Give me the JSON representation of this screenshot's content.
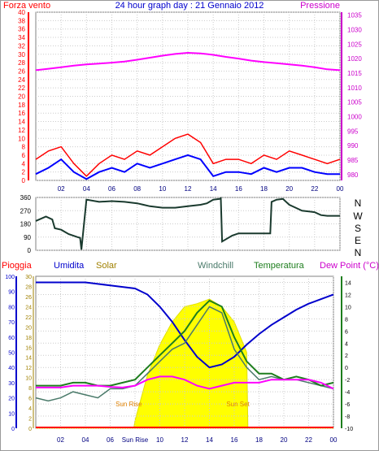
{
  "chart_data": [
    {
      "type": "line",
      "panel": "wind-pressure",
      "title": "24 hour graph day : 21 Gennaio 2012",
      "left_label": "Forza vento",
      "right_label": "Pressione",
      "x_ticks": [
        "02",
        "04",
        "06",
        "08",
        "10",
        "12",
        "14",
        "16",
        "18",
        "20",
        "22",
        "00"
      ],
      "left_ticks": [
        "0",
        "2",
        "4",
        "6",
        "8",
        "10",
        "12",
        "14",
        "16",
        "18",
        "20",
        "22",
        "24",
        "26",
        "28",
        "30",
        "32",
        "34",
        "36",
        "38",
        "40"
      ],
      "right_ticks": [
        "980",
        "985",
        "990",
        "995",
        "1000",
        "1005",
        "1010",
        "1015",
        "1020",
        "1025",
        "1030",
        "1035"
      ],
      "ylim_left": [
        0,
        40
      ],
      "ylim_right": [
        978,
        1036
      ],
      "colors": {
        "gust": "#ff0000",
        "average": "#0000ff",
        "pressure": "#ff00ff"
      },
      "series": [
        {
          "key": "pressure",
          "axis": "right",
          "x": [
            0,
            1,
            2,
            3,
            4,
            5,
            6,
            7,
            8,
            9,
            10,
            11,
            12,
            13,
            14,
            15,
            16,
            17,
            18,
            19,
            20,
            21,
            22,
            23,
            24
          ],
          "y": [
            1016,
            1016.5,
            1017,
            1017.6,
            1018,
            1018.3,
            1018.6,
            1019,
            1019.6,
            1020.3,
            1021,
            1021.6,
            1022,
            1021.8,
            1021.3,
            1020.6,
            1020,
            1019.3,
            1018.8,
            1018.4,
            1018,
            1017.6,
            1017,
            1016.3,
            1016
          ]
        },
        {
          "key": "gust",
          "axis": "left",
          "x": [
            0,
            1,
            2,
            3,
            4,
            5,
            6,
            7,
            8,
            9,
            10,
            11,
            12,
            13,
            14,
            15,
            16,
            17,
            18,
            19,
            20,
            21,
            22,
            23,
            24
          ],
          "y": [
            5,
            7,
            8,
            4,
            1,
            4,
            6,
            5,
            7,
            6,
            8,
            10,
            11,
            9,
            4,
            5,
            5,
            4,
            6,
            5,
            7,
            6,
            5,
            4,
            5
          ]
        },
        {
          "key": "average",
          "axis": "left",
          "x": [
            0,
            1,
            2,
            3,
            4,
            5,
            6,
            7,
            8,
            9,
            10,
            11,
            12,
            13,
            14,
            15,
            16,
            17,
            18,
            19,
            20,
            21,
            22,
            23,
            24
          ],
          "y": [
            1.5,
            3,
            5,
            2,
            0.3,
            2,
            3,
            2,
            4,
            3,
            4,
            5,
            6,
            5,
            1,
            2,
            2,
            1.5,
            3,
            2,
            3,
            3,
            2,
            1.5,
            1.5
          ]
        }
      ]
    },
    {
      "type": "line",
      "panel": "wind-direction",
      "right_ticks": [
        "N",
        "W",
        "S",
        "E",
        "N"
      ],
      "left_ticks": [
        "0",
        "90",
        "180",
        "270",
        "360"
      ],
      "ylim": [
        0,
        360
      ],
      "colors": {
        "direction": "#1a3a2e"
      },
      "series": [
        {
          "key": "direction",
          "x": [
            0,
            0.8,
            1.3,
            1.5,
            2.0,
            2.6,
            3.3,
            3.5,
            3.6,
            4.0,
            5.0,
            6.0,
            7.0,
            8.0,
            8.5,
            9.0,
            10.0,
            11.0,
            12.0,
            13.0,
            13.5,
            14.0,
            14.5,
            14.6,
            14.7,
            15.5,
            16.0,
            17.0,
            18.0,
            18.5,
            18.6,
            19.0,
            19.5,
            20.0,
            20.5,
            21.0,
            22.0,
            22.5,
            23.0,
            24.0
          ],
          "y": [
            200,
            230,
            210,
            150,
            140,
            110,
            90,
            85,
            5,
            345,
            330,
            335,
            330,
            320,
            310,
            300,
            290,
            290,
            300,
            310,
            320,
            345,
            350,
            355,
            60,
            100,
            115,
            115,
            115,
            115,
            330,
            345,
            350,
            310,
            290,
            270,
            260,
            240,
            235,
            235
          ]
        }
      ]
    },
    {
      "type": "line",
      "panel": "temperature-humidity",
      "labels": {
        "rain": "Pioggia",
        "humidity": "Umidita",
        "solar": "Solar",
        "windchill": "Windchill",
        "temperature": "Temperatura",
        "dew_point": "Dew Point (°C)"
      },
      "annotations": [
        "Sun Rise",
        "Sun Set"
      ],
      "x_ticks": [
        "02",
        "04",
        "06",
        "Sun Rise",
        "10",
        "12",
        "14",
        "16",
        "18",
        "20",
        "22",
        "00"
      ],
      "humidity_ticks": [
        "0",
        "10",
        "20",
        "30",
        "40",
        "50",
        "60",
        "70",
        "80",
        "90",
        "100"
      ],
      "rain_ticks": [
        "0",
        "2",
        "4",
        "6",
        "8",
        "10",
        "12",
        "14",
        "16",
        "18",
        "20",
        "22",
        "24",
        "26",
        "28",
        "30"
      ],
      "temperature_ticks": [
        "-10",
        "-8",
        "-6",
        "-4",
        "-2",
        "0",
        "2",
        "4",
        "6",
        "8",
        "10",
        "12",
        "14"
      ],
      "ylim_temperature": [
        -10,
        15
      ],
      "ylim_humidity": [
        0,
        100
      ],
      "colors": {
        "rain": "#ff0000",
        "humidity": "#0000cc",
        "solar": "#ffff00",
        "windchill": "#4a7a6a",
        "temperature": "#1e7e1e",
        "dew_point": "#ff00ff"
      },
      "series": [
        {
          "key": "humidity",
          "x": [
            0,
            1,
            2,
            3,
            4,
            5,
            6,
            7,
            8,
            9,
            10,
            11,
            12,
            13,
            14,
            15,
            16,
            17,
            18,
            19,
            20,
            21,
            22,
            23,
            24
          ],
          "y": [
            96,
            96,
            96,
            96,
            96,
            95,
            94,
            93,
            92,
            88,
            80,
            70,
            58,
            47,
            40,
            42,
            47,
            55,
            62,
            68,
            73,
            78,
            82,
            85,
            88
          ]
        },
        {
          "key": "temperature",
          "x": [
            0,
            1,
            2,
            3,
            4,
            5,
            6,
            7,
            8,
            9,
            10,
            11,
            12,
            13,
            14,
            15,
            16,
            17,
            18,
            19,
            20,
            21,
            22,
            23,
            24
          ],
          "y": [
            -3,
            -3,
            -3,
            -2.5,
            -2.5,
            -3,
            -3,
            -2.5,
            -2,
            0,
            2,
            4,
            6,
            9,
            11,
            10,
            5,
            1,
            -1,
            -1,
            -2,
            -1.5,
            -2,
            -3,
            -2.5
          ]
        },
        {
          "key": "windchill",
          "x": [
            0,
            1,
            2,
            3,
            4,
            5,
            6,
            7,
            8,
            9,
            10,
            11,
            12,
            13,
            14,
            15,
            16,
            17,
            18,
            19,
            20,
            21,
            22,
            23,
            24
          ],
          "y": [
            -5,
            -5.5,
            -5,
            -4,
            -4.5,
            -5,
            -3.5,
            -3.5,
            -3,
            -1,
            1,
            3,
            4,
            7,
            10,
            9,
            3,
            0,
            -2,
            -1.5,
            -2,
            -2,
            -2.5,
            -3,
            -3.5
          ]
        },
        {
          "key": "dew_point",
          "x": [
            0,
            1,
            2,
            3,
            4,
            5,
            6,
            7,
            8,
            9,
            10,
            11,
            12,
            13,
            14,
            15,
            16,
            17,
            18,
            19,
            20,
            21,
            22,
            23,
            24
          ],
          "y": [
            -3.3,
            -3.3,
            -3.3,
            -3,
            -3,
            -3,
            -3.2,
            -3.3,
            -3,
            -2,
            -1.5,
            -1.5,
            -2,
            -3,
            -3.5,
            -3,
            -2.5,
            -2.5,
            -2.5,
            -2,
            -2,
            -2,
            -2,
            -2.5,
            -3.5
          ]
        },
        {
          "key": "solar",
          "x": [
            0,
            7.9,
            8.0,
            9,
            10,
            11,
            12,
            13,
            14,
            15,
            16,
            17.0,
            17.1,
            24
          ],
          "y": [
            0,
            0,
            5,
            35,
            55,
            70,
            80,
            82,
            85,
            80,
            70,
            50,
            0,
            0
          ]
        }
      ]
    }
  ]
}
